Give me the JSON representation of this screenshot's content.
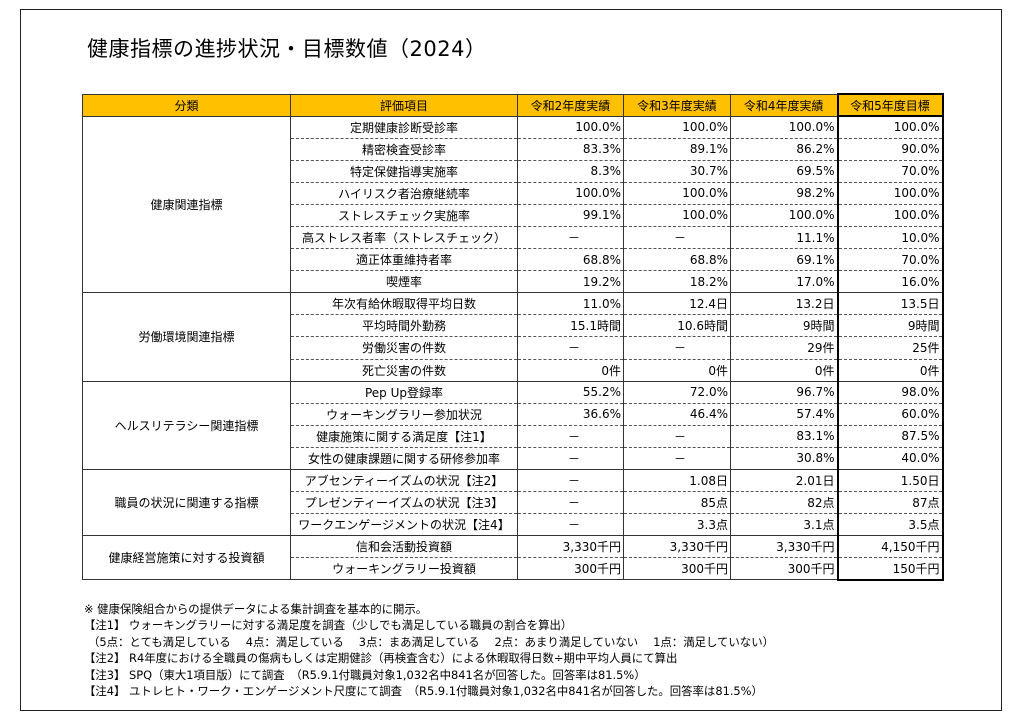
{
  "title": "健康指標の進捗状況・目標数値（2024）",
  "headers": [
    "分類",
    "評価項目",
    "令和2年度実績",
    "令和3年度実績",
    "令和4年度実績",
    "令和5年度目標"
  ],
  "groups": [
    {
      "category": "健康関連指標",
      "rows": [
        {
          "item": "定期健康診断受診率",
          "values": [
            "100.0%",
            "100.0%",
            "100.0%",
            "100.0%"
          ]
        },
        {
          "item": "精密検査受診率",
          "values": [
            "83.3%",
            "89.1%",
            "86.2%",
            "90.0%"
          ]
        },
        {
          "item": "特定保健指導実施率",
          "values": [
            "8.3%",
            "30.7%",
            "69.5%",
            "70.0%"
          ]
        },
        {
          "item": "ハイリスク者治療継続率",
          "values": [
            "100.0%",
            "100.0%",
            "98.2%",
            "100.0%"
          ]
        },
        {
          "item": "ストレスチェック実施率",
          "values": [
            "99.1%",
            "100.0%",
            "100.0%",
            "100.0%"
          ]
        },
        {
          "item": "高ストレス者率（ストレスチェック）",
          "values": [
            "－",
            "－",
            "11.1%",
            "10.0%"
          ]
        },
        {
          "item": "適正体重維持者率",
          "values": [
            "68.8%",
            "68.8%",
            "69.1%",
            "70.0%"
          ]
        },
        {
          "item": "喫煙率",
          "values": [
            "19.2%",
            "18.2%",
            "17.0%",
            "16.0%"
          ]
        }
      ]
    },
    {
      "category": "労働環境関連指標",
      "rows": [
        {
          "item": "年次有給休暇取得平均日数",
          "values": [
            "11.0%",
            "12.4日",
            "13.2日",
            "13.5日"
          ]
        },
        {
          "item": "平均時間外勤務",
          "values": [
            "15.1時間",
            "10.6時間",
            "9時間",
            "9時間"
          ]
        },
        {
          "item": "労働災害の件数",
          "values": [
            "－",
            "－",
            "29件",
            "25件"
          ]
        },
        {
          "item": "死亡災害の件数",
          "values": [
            "0件",
            "0件",
            "0件",
            "0件"
          ]
        }
      ]
    },
    {
      "category": "ヘルスリテラシー関連指標",
      "rows": [
        {
          "item": "Pep Up登録率",
          "values": [
            "55.2%",
            "72.0%",
            "96.7%",
            "98.0%"
          ]
        },
        {
          "item": "ウォーキングラリー参加状況",
          "values": [
            "36.6%",
            "46.4%",
            "57.4%",
            "60.0%"
          ]
        },
        {
          "item": "健康施策に関する満足度【注1】",
          "values": [
            "－",
            "－",
            "83.1%",
            "87.5%"
          ]
        },
        {
          "item": "女性の健康課題に関する研修参加率",
          "values": [
            "－",
            "－",
            "30.8%",
            "40.0%"
          ]
        }
      ]
    },
    {
      "category": "職員の状況に関連する指標",
      "rows": [
        {
          "item": "アブセンティーイズムの状況【注2】",
          "values": [
            "－",
            "1.08日",
            "2.01日",
            "1.50日"
          ]
        },
        {
          "item": "プレゼンティーイズムの状況【注3】",
          "values": [
            "－",
            "85点",
            "82点",
            "87点"
          ]
        },
        {
          "item": "ワークエンゲージメントの状況【注4】",
          "values": [
            "－",
            "3.3点",
            "3.1点",
            "3.5点"
          ]
        }
      ]
    },
    {
      "category": "健康経営施策に対する投資額",
      "rows": [
        {
          "item": "信和会活動投資額",
          "values": [
            "3,330千円",
            "3,330千円",
            "3,330千円",
            "4,150千円"
          ]
        },
        {
          "item": "ウォーキングラリー投資額",
          "values": [
            "300千円",
            "300千円",
            "300千円",
            "150千円"
          ]
        }
      ]
    }
  ],
  "notes": [
    "※  健康保険組合からの提供データによる集計調査を基本的に開示。",
    "【注1】 ウォーキングラリーに対する満足度を調査（少しでも満足している職員の割合を算出）",
    "（5点：とても満足している　 4点：満足している　 3点：まあ満足している　 2点：あまり満足していない　 1点：満足していない）",
    "【注2】 R4年度における全職員の傷病もしくは定期健診（再検査含む）による休暇取得日数÷期中平均人員にて算出",
    "【注3】 SPQ（東大1項目版）にて調査　（R5.9.1付職員対象1,032名中841名が回答した。回答率は81.5%）",
    "【注4】 ユトレヒト・ワーク・エンゲージメント尺度にて調査　（R5.9.1付職員対象1,032名中841名が回答した。回答率は81.5%）"
  ]
}
